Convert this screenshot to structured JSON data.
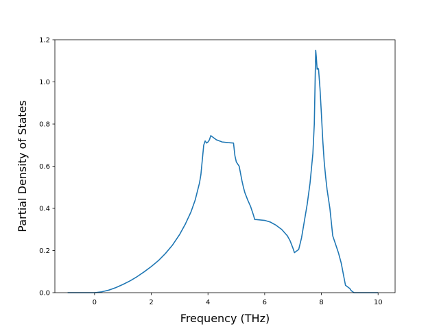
{
  "chart_data": {
    "type": "line",
    "title": "",
    "xlabel": "Frequency (THz)",
    "ylabel": "Partial Density of States",
    "xlim": [
      -1.4,
      10.6
    ],
    "ylim": [
      0.0,
      1.2
    ],
    "xticks": [
      0,
      2,
      4,
      6,
      8,
      10
    ],
    "xtick_labels": [
      "0",
      "2",
      "4",
      "6",
      "8",
      "10"
    ],
    "yticks": [
      0.0,
      0.2,
      0.4,
      0.6,
      0.8,
      1.0,
      1.2
    ],
    "ytick_labels": [
      "0.0",
      "0.2",
      "0.4",
      "0.6",
      "0.8",
      "1.0",
      "1.2"
    ],
    "grid": false,
    "line_color": "#1f77b4",
    "series": [
      {
        "x": [
          -0.95,
          0.0,
          0.25,
          0.5,
          0.75,
          1.0,
          1.25,
          1.5,
          1.75,
          2.0,
          2.25,
          2.5,
          2.75,
          3.0,
          3.2,
          3.4,
          3.55,
          3.7,
          3.75,
          3.8,
          3.85,
          3.9,
          3.95,
          4.0,
          4.05,
          4.1,
          4.2,
          4.3,
          4.5,
          4.7,
          4.9,
          4.95,
          5.0,
          5.1,
          5.15,
          5.2,
          5.25,
          5.3,
          5.4,
          5.5,
          5.6,
          5.65,
          5.7,
          6.0,
          6.2,
          6.4,
          6.6,
          6.8,
          6.9,
          7.0,
          7.05,
          7.1,
          7.15,
          7.2,
          7.3,
          7.4,
          7.5,
          7.6,
          7.7,
          7.75,
          7.8,
          7.82,
          7.85,
          7.88,
          7.9,
          7.95,
          8.0,
          8.05,
          8.1,
          8.15,
          8.2,
          8.3,
          8.4,
          8.45,
          8.5,
          8.6,
          8.7,
          8.8,
          8.85,
          8.9,
          9.0,
          9.05,
          9.1,
          9.15,
          9.2,
          10.0
        ],
        "y": [
          0.0,
          0.0,
          0.004,
          0.012,
          0.024,
          0.039,
          0.056,
          0.076,
          0.099,
          0.124,
          0.152,
          0.186,
          0.226,
          0.276,
          0.325,
          0.383,
          0.44,
          0.52,
          0.56,
          0.63,
          0.7,
          0.72,
          0.71,
          0.715,
          0.725,
          0.745,
          0.735,
          0.725,
          0.715,
          0.712,
          0.71,
          0.65,
          0.62,
          0.6,
          0.565,
          0.53,
          0.5,
          0.475,
          0.44,
          0.41,
          0.37,
          0.347,
          0.347,
          0.343,
          0.335,
          0.32,
          0.3,
          0.27,
          0.245,
          0.21,
          0.19,
          0.195,
          0.2,
          0.205,
          0.26,
          0.34,
          0.42,
          0.52,
          0.66,
          0.8,
          1.15,
          1.12,
          1.06,
          1.065,
          1.06,
          0.97,
          0.85,
          0.72,
          0.62,
          0.55,
          0.49,
          0.4,
          0.27,
          0.25,
          0.23,
          0.19,
          0.14,
          0.07,
          0.035,
          0.03,
          0.02,
          0.01,
          0.005,
          0.0,
          0.0,
          0.0
        ]
      }
    ]
  }
}
